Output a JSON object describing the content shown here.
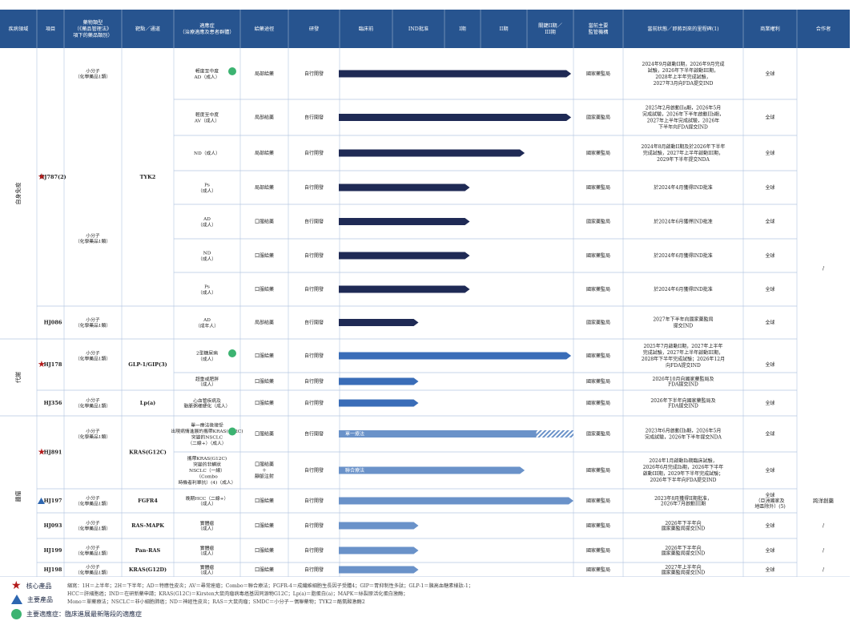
{
  "colors": {
    "header": "#27548f",
    "bar_dark": "#1f2a55",
    "bar_mid": "#3a6db8",
    "bar_light": "#6a92c9",
    "star": "#b31b1b",
    "triangle": "#2d66b0",
    "dot": "#3cb371",
    "grid": "#b4c6e0"
  },
  "headers": [
    "疾病領域",
    "項目",
    "藥物類型\n（《藥品管理法》\n項下的藥品類別）",
    "靶點／通道",
    "適應症\n（治療適應及患者群體）",
    "給藥途徑",
    "研發",
    "臨床前",
    "IND批准",
    "I期",
    "II期",
    "關鍵II期／\nIII期",
    "當前主要\n監管機構",
    "當前狀態／即將到來的里程碑(1)",
    "商業權利",
    "合作者"
  ],
  "areas": [
    "自身免疫",
    "代謝",
    "腫瘤"
  ],
  "rows": [
    {
      "indication": "輕度至中度\nAD（成人）",
      "route": "局部給藥",
      "dev": "自行開發",
      "stage": 4.95,
      "color": "dark",
      "regulator": "國家藥監局",
      "status": "2024年9月啟動II期，2026年9月完成\n試驗，2026年下半年啟動III期，\n2028年上半年完成試驗，\n2027年3月向FDA提交IND",
      "rights": "全球",
      "dot": true
    },
    {
      "indication": "輕度至中度\nAV（成人）",
      "route": "局部給藥",
      "dev": "自行開發",
      "stage": 4.95,
      "color": "dark",
      "regulator": "國家藥監局",
      "status": "2025年2月啟動IIa期，2026年5月\n完成試驗，2026年下半年啟動IIb期，\n2027年上半年完成試驗，2026年\n下半年向FDA提交IND",
      "rights": "全球"
    },
    {
      "indication": "ND（成人）",
      "route": "局部給藥",
      "dev": "自行開發",
      "stage": 3.95,
      "color": "dark",
      "regulator": "國家藥監局",
      "status": "2024年8月啟動II期及於2026年下半年\n完成試驗，2027年上半年啟動III期，\n2029年下半年提交NDA",
      "rights": "全球"
    },
    {
      "indication": "Ps\n（成人）",
      "route": "局部給藥",
      "dev": "自行開發",
      "stage": 2.7,
      "color": "dark",
      "regulator": "國家藥監局",
      "status": "於2024年4月獲得IND批准",
      "rights": "全球"
    },
    {
      "indication": "AD\n（成人）",
      "route": "口服給藥",
      "dev": "自行開發",
      "stage": 2.7,
      "color": "dark",
      "regulator": "國家藥監局",
      "status": "於2024年6月獲得IND批准",
      "rights": "全球"
    },
    {
      "indication": "ND\n（成人）",
      "route": "口服給藥",
      "dev": "自行開發",
      "stage": 2.7,
      "color": "dark",
      "regulator": "國家藥監局",
      "status": "於2024年6月獲得IND批准",
      "rights": "全球"
    },
    {
      "indication": "Ps\n（成人）",
      "route": "口服給藥",
      "dev": "自行開發",
      "stage": 2.7,
      "color": "dark",
      "regulator": "國家藥監局",
      "status": "於2024年6月獲得IND批准",
      "rights": "全球"
    },
    {
      "indication": "AD\n（成年人）",
      "route": "局部給藥",
      "dev": "自行開發",
      "stage": 1.5,
      "color": "dark",
      "regulator": "國家藥監局",
      "status": "2027年下半年向國家藥監局\n提交IND",
      "rights": "全球"
    },
    {
      "indication": "2型糖尿病\n（成人）",
      "route": "口服給藥",
      "dev": "自行開發",
      "stage": 4.95,
      "color": "mid",
      "regulator": "國家藥監局",
      "status": "2025年7月啟動II期，2027年上半年\n完成試驗，2027年上半年啟動III期，\n2028年下半年完成試驗；2026年12月\n向FDA提交IND",
      "rights": "",
      "dot": true
    },
    {
      "indication": "超重或肥胖\n（成人）",
      "route": "口服給藥",
      "dev": "自行開發",
      "stage": 1.5,
      "color": "mid",
      "regulator": "國家藥監局",
      "status": "2026年10月向國家藥監局及\nFDA提交IND",
      "rights": ""
    },
    {
      "indication": "心血管疾病及\n動脈粥樣硬化（成人）",
      "route": "口服給藥",
      "dev": "自行開發",
      "stage": 1.5,
      "color": "mid",
      "regulator": "國家藥監局",
      "status": "2026年下半年向國家藥監局及\nFDA提交IND",
      "rights": "全球"
    },
    {
      "indication": "單一療法後接受\n出現病情進展的攜帶KRAS(G12C)\n突變的NSCLC\n（二線+）（成人）",
      "route": "口服給藥",
      "dev": "自行開發",
      "stage": 6.1,
      "color": "light",
      "bar_label": "單一療法",
      "hatch": [
        4.2,
        5.5
      ],
      "regulator": "國家藥監局",
      "status": "2023年6月啟動IIb期，2026年5月\n完成試驗，2026年下半年提交NDA",
      "rights": "全球",
      "dot": true
    },
    {
      "indication": "攜帶KRAS(G12C)\n突變的非鱗狀\nNSCLC（一線）\n（Combo\n時機者利單抗）(4)（成人）",
      "route": "口服給藥\n＋\n靜脈注射",
      "dev": "自行開發",
      "stage": 3.95,
      "color": "light",
      "bar_label": "聯合療法",
      "regulator": "國家藥監局",
      "status": "2024年1月啟動Ib期臨床試驗，\n2026年6月完成Ib期，2026年下半年\n啟動III期，2029年下半年完成試驗；\n2026年下半年向FDA提交IND",
      "rights": "全球"
    },
    {
      "indication": "晚期HCC（二線+）\n（成人）",
      "route": "口服給藥",
      "dev": "自行開發",
      "stage": 5.3,
      "color": "light",
      "regulator": "國家藥監局",
      "status": "2023年8月獲得II期批准，\n2026年7月啟動III期",
      "rights": "全球\n（亞洲國家及\n地區除外）(5)"
    },
    {
      "indication": "實體瘤\n（成人）",
      "route": "口服給藥",
      "dev": "自行開發",
      "stage": 1.5,
      "color": "light",
      "regulator": "國家藥監局",
      "status": "2026年下半年向\n國家藥監局提交IND",
      "rights": "全球"
    },
    {
      "indication": "實體瘤\n（成人）",
      "route": "口服給藥",
      "dev": "自行開發",
      "stage": 1.5,
      "color": "light",
      "regulator": "國家藥監局",
      "status": "2026年下半年向\n國家藥監局提交IND",
      "rights": "全球"
    },
    {
      "indication": "實體瘤\n（成人）",
      "route": "口服給藥",
      "dev": "自行開發",
      "stage": 1.5,
      "color": "light",
      "regulator": "國家藥監局",
      "status": "2027年上半年向\n國家藥監局提交IND",
      "rights": "全球"
    }
  ],
  "projects": [
    {
      "name": "HJ787(2)",
      "marker": "star"
    },
    {
      "name": "HJ086",
      "marker": ""
    },
    {
      "name": "HJ178",
      "marker": "star"
    },
    {
      "name": "HJ356",
      "marker": ""
    },
    {
      "name": "HJ891",
      "marker": "star"
    },
    {
      "name": "HJ197",
      "marker": "triangle"
    },
    {
      "name": "HJ093",
      "marker": ""
    },
    {
      "name": "HJ199",
      "marker": ""
    },
    {
      "name": "HJ198",
      "marker": ""
    }
  ],
  "drug_type": "小分子\n（化學藥品1類）",
  "targets": [
    "TYK2",
    "GLP-1/GIP(3)",
    "Lp(a)",
    "KRAS(G12C)",
    "FGFR4",
    "RAS-MAPK",
    "Pan-RAS",
    "KRAS(G12D)"
  ],
  "rights_merged": "全球",
  "collaborators": [
    "/",
    "跨洋創藥",
    "/",
    "/",
    "/"
  ],
  "legend": {
    "core": "核心產品",
    "key": "主要產品",
    "key_indication": "主要適應症：臨床進展最新階段的適應症",
    "abbr_lines": [
      "縮寫：1H＝上半年；2H＝下半年；AD＝特應性皮炎；AV＝尋常痤瘡；Combo＝聯合療法；FGFR-4＝成纖維細胞生長因子受體4；GIP＝胃抑制性多肽；GLP-1＝胰高血糖素樣肽-1；",
      "HCC＝肝細胞癌；IND＝在研新藥申請；KRAS(G12C)＝Kirsten大鼠肉瘤病毒癌基因同源物G12C；Lp(a)＝脂蛋白(a)；MAPK＝絲裂原活化蛋白激酶；",
      "Mono＝單藥療法；NSCLC＝非小細胞肺癌；ND＝神經性皮炎；RAS＝大鼠肉瘤；SMDC＝小分子－偶聯藥物；TYK2＝酪氨酸激酶2"
    ]
  }
}
